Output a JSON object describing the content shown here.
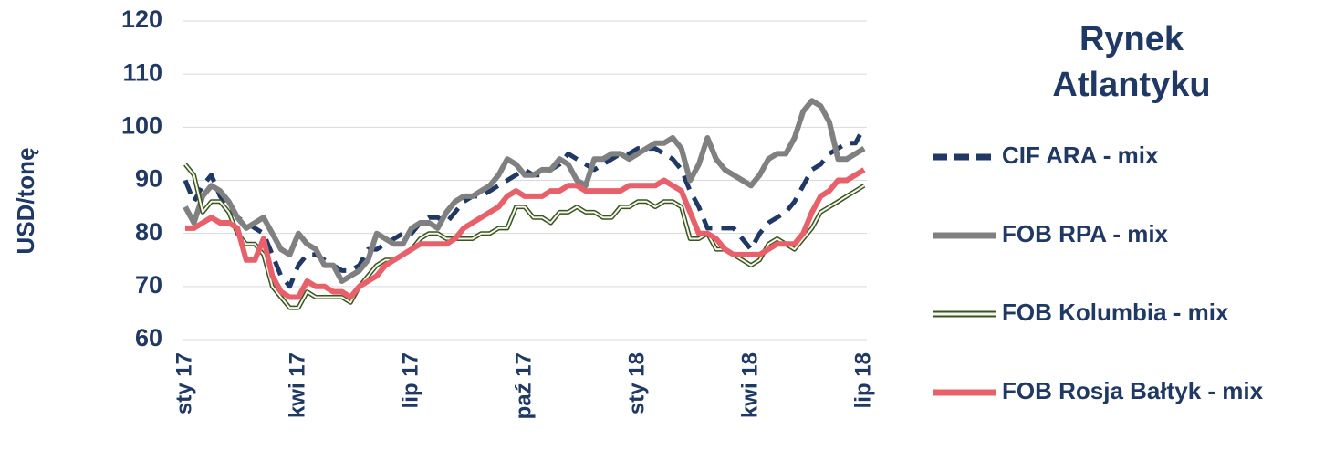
{
  "chart_data": {
    "type": "line",
    "title": "Rynek Atlantyku",
    "y_label": "USD/tonę",
    "categories": [
      "sty 17",
      null,
      null,
      null,
      null,
      null,
      null,
      null,
      null,
      null,
      null,
      null,
      null,
      "kwi 17",
      null,
      null,
      null,
      null,
      null,
      null,
      null,
      null,
      null,
      null,
      null,
      null,
      "lip 17",
      null,
      null,
      null,
      null,
      null,
      null,
      null,
      null,
      null,
      null,
      null,
      null,
      "paź 17",
      null,
      null,
      null,
      null,
      null,
      null,
      null,
      null,
      null,
      null,
      null,
      null,
      "sty 18",
      null,
      null,
      null,
      null,
      null,
      null,
      null,
      null,
      null,
      null,
      null,
      null,
      "kwi 18",
      null,
      null,
      null,
      null,
      null,
      null,
      null,
      null,
      null,
      null,
      null,
      null,
      "lip 18"
    ],
    "ylim": [
      60,
      120
    ],
    "yticks": [
      60,
      70,
      80,
      90,
      100,
      110,
      120
    ],
    "grid": true,
    "series": [
      {
        "name": "CIF ARA - mix",
        "color": "#1f3864",
        "style": "dashed",
        "values": [
          90,
          86,
          89,
          91,
          87,
          85,
          83,
          82,
          81,
          80,
          76,
          72,
          70,
          74,
          76,
          76,
          75,
          74,
          73,
          73,
          74,
          77,
          77,
          78,
          79,
          80,
          80,
          82,
          83,
          83,
          82,
          84,
          86,
          87,
          87,
          88,
          89,
          90,
          91,
          92,
          91,
          91,
          92,
          93,
          95,
          94,
          93,
          92,
          93,
          94,
          95,
          95,
          96,
          96,
          96,
          95,
          94,
          92,
          88,
          85,
          81,
          81,
          81,
          81,
          79,
          77,
          80,
          82,
          83,
          84,
          86,
          89,
          92,
          93,
          95,
          96,
          97,
          97,
          100
        ]
      },
      {
        "name": "FOB RPA - mix",
        "color": "#808080",
        "style": "solid",
        "values": [
          85,
          82,
          87,
          89,
          88,
          86,
          83,
          81,
          82,
          83,
          80,
          77,
          76,
          80,
          78,
          77,
          74,
          74,
          71,
          72,
          73,
          75,
          80,
          79,
          78,
          78,
          81,
          82,
          82,
          81,
          84,
          86,
          87,
          87,
          88,
          89,
          91,
          94,
          93,
          91,
          91,
          92,
          92,
          94,
          93,
          90,
          89,
          94,
          94,
          95,
          95,
          94,
          95,
          96,
          97,
          97,
          98,
          96,
          90,
          93,
          98,
          94,
          92,
          91,
          90,
          89,
          91,
          94,
          95,
          95,
          98,
          103,
          105,
          104,
          101,
          94,
          94,
          95,
          96
        ]
      },
      {
        "name": "FOB Kolumbia - mix",
        "color": "#3b5323",
        "style": "double",
        "values": [
          93,
          91,
          84,
          86,
          86,
          84,
          80,
          78,
          78,
          76,
          70,
          68,
          66,
          66,
          69,
          68,
          68,
          68,
          68,
          67,
          70,
          72,
          74,
          75,
          75,
          76,
          77,
          79,
          80,
          80,
          79,
          79,
          79,
          79,
          80,
          80,
          81,
          81,
          85,
          85,
          83,
          83,
          82,
          84,
          84,
          85,
          84,
          84,
          83,
          83,
          85,
          85,
          86,
          86,
          85,
          86,
          86,
          85,
          79,
          79,
          80,
          77,
          77,
          76,
          75,
          74,
          75,
          78,
          79,
          78,
          77,
          79,
          81,
          84,
          85,
          86,
          87,
          88,
          89
        ]
      },
      {
        "name": "FOB Rosja Bałtyk - mix",
        "color": "#e8606a",
        "style": "solid",
        "values": [
          81,
          81,
          82,
          83,
          82,
          82,
          81,
          75,
          75,
          79,
          72,
          69,
          68,
          68,
          71,
          70,
          70,
          69,
          69,
          68,
          70,
          71,
          72,
          74,
          75,
          76,
          77,
          78,
          78,
          78,
          78,
          79,
          81,
          82,
          83,
          84,
          85,
          87,
          88,
          87,
          87,
          87,
          88,
          88,
          89,
          89,
          88,
          88,
          88,
          88,
          88,
          89,
          89,
          89,
          89,
          90,
          89,
          88,
          84,
          80,
          80,
          79,
          77,
          76,
          76,
          76,
          76,
          77,
          78,
          78,
          78,
          80,
          84,
          87,
          88,
          90,
          90,
          91,
          92
        ]
      }
    ]
  }
}
